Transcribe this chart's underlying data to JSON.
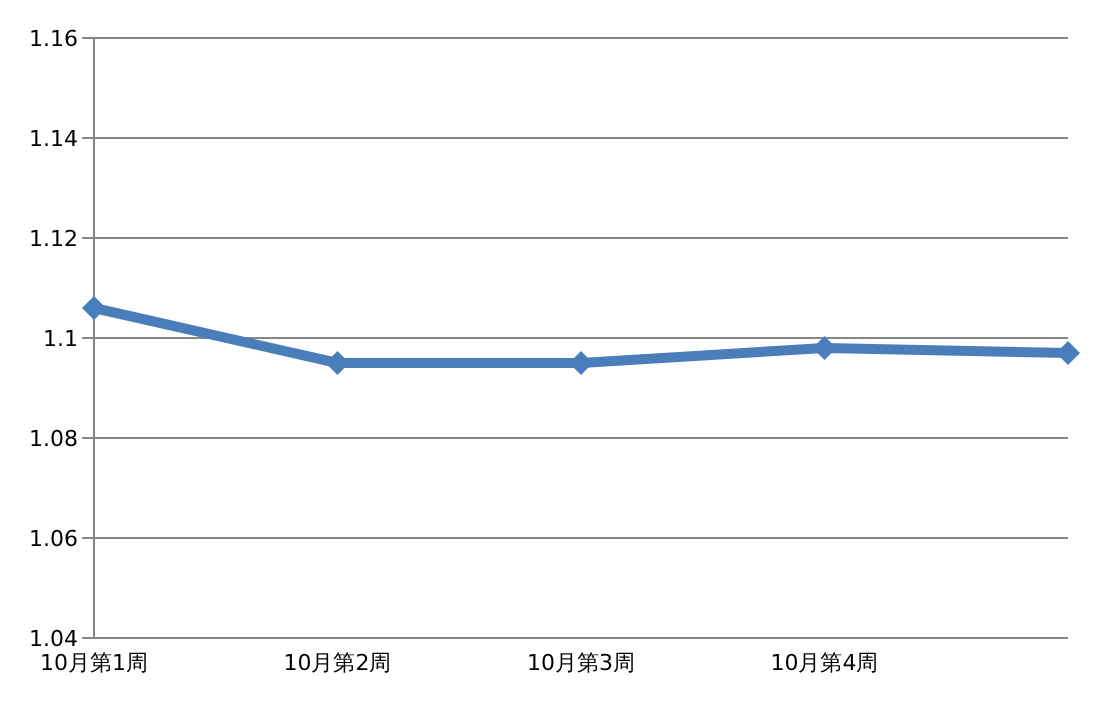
{
  "chart_data": {
    "type": "line",
    "categories": [
      "10月第1周",
      "10月第2周",
      "10月第3周",
      "10月第4周",
      null
    ],
    "series": [
      {
        "color": "#4a7ebb",
        "values": [
          1.106,
          1.095,
          1.095,
          1.098,
          1.097
        ]
      }
    ],
    "ylim": [
      1.04,
      1.16
    ],
    "yticks": [
      1.04,
      1.06,
      1.08,
      1.1,
      1.12,
      1.14,
      1.16
    ],
    "grid": "y",
    "legend": false,
    "marker": "diamond",
    "line_style": "solid"
  }
}
